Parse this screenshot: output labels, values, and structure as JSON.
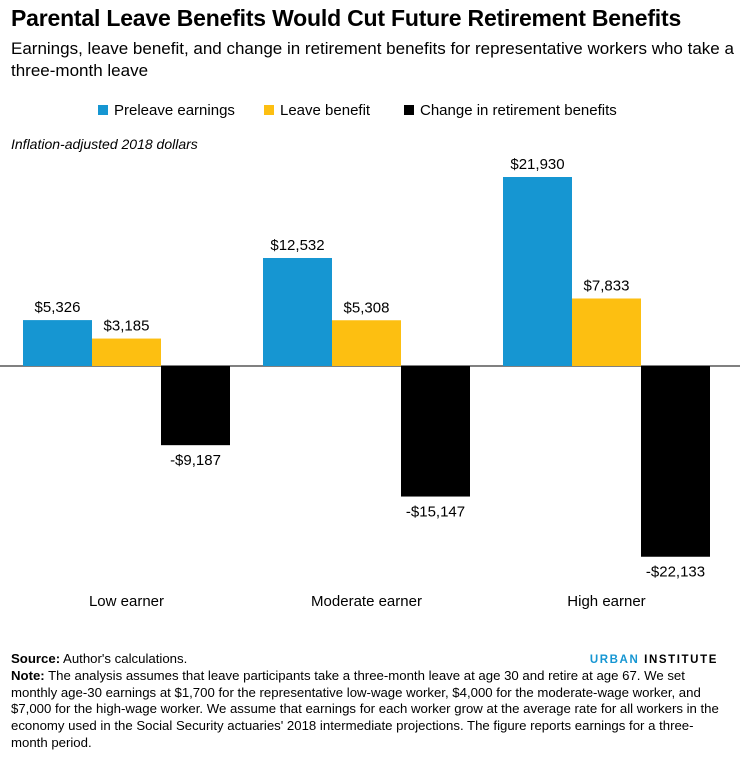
{
  "header": {
    "title": "Parental Leave Benefits Would Cut Future Retirement Benefits",
    "subtitle": "Earnings, leave benefit, and change in retirement benefits for representative workers who take a three-month leave",
    "unit_note": "Inflation-adjusted 2018 dollars"
  },
  "chart_data": {
    "type": "bar",
    "categories": [
      "Low earner",
      "Moderate earner",
      "High earner"
    ],
    "series": [
      {
        "name": "Preleave earnings",
        "color": "#1696d2",
        "values": [
          5326,
          12532,
          21930
        ],
        "labels": [
          "$5,326",
          "$12,532",
          "$21,930"
        ]
      },
      {
        "name": "Leave benefit",
        "color": "#fdbf11",
        "values": [
          3185,
          5308,
          7833
        ],
        "labels": [
          "$3,185",
          "$5,308",
          "$7,833"
        ]
      },
      {
        "name": "Change in retirement benefits",
        "color": "#000000",
        "values": [
          -9187,
          -15147,
          -22133
        ],
        "labels": [
          "-$9,187",
          "-$15,147",
          "-$22,133"
        ]
      }
    ],
    "ylim": [
      -23000,
      23000
    ],
    "grid": false,
    "legend": "top"
  },
  "footer": {
    "source_label": "Source:",
    "source_text": " Author's calculations.",
    "note_label": "Note:",
    "note_text": " The analysis assumes that leave participants take a three-month leave at age 30 and retire at age 67. We set monthly age-30 earnings at $1,700 for the representative low-wage worker, $4,000 for the moderate-wage worker, and $7,000 for the high-wage worker. We assume that earnings for each worker grow at the average rate for all workers in the economy used in the Social Security actuaries' 2018 intermediate projections. The figure reports earnings for a three-month period."
  },
  "brand": {
    "urban": "URBAN",
    "institute": "INSTITUTE"
  }
}
